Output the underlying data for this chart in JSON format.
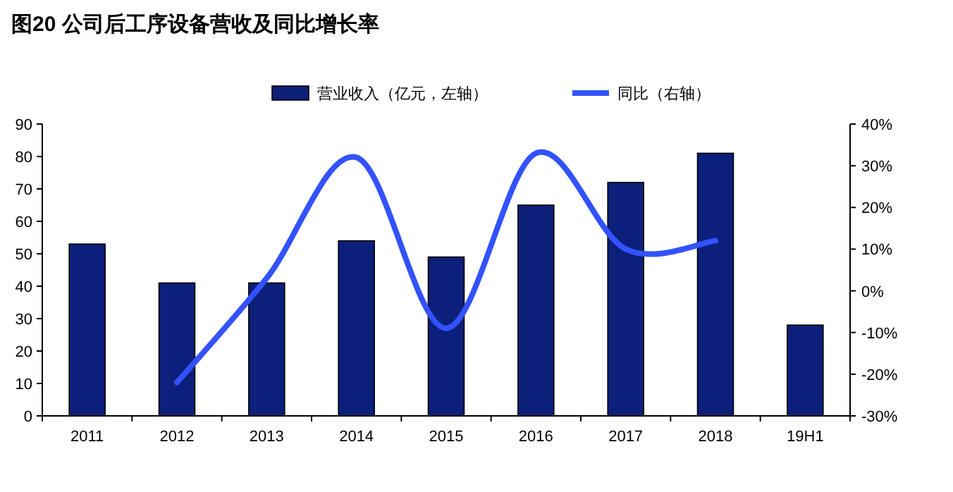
{
  "chart_data": {
    "type": "bar",
    "title": "图20  公司后工序设备营收及同比增长率",
    "categories": [
      "2011",
      "2012",
      "2013",
      "2014",
      "2015",
      "2016",
      "2017",
      "2018",
      "19H1"
    ],
    "series": [
      {
        "name": "营业收入（亿元，左轴）",
        "color": "#0c1f7a",
        "values": [
          53,
          41,
          41,
          54,
          49,
          65,
          72,
          81,
          28
        ]
      },
      {
        "name": "同比（右轴）",
        "color": "#3352ff",
        "type": "line",
        "axis": "y2",
        "values": [
          null,
          -22,
          3,
          32,
          -9,
          33,
          10,
          12,
          null
        ]
      }
    ],
    "ylim": [
      0,
      90
    ],
    "yticks": [
      0,
      10,
      20,
      30,
      40,
      50,
      60,
      70,
      80,
      90
    ],
    "y2lim": [
      -30,
      40
    ],
    "y2ticks": [
      {
        "value": -30,
        "label": "-30%"
      },
      {
        "value": -20,
        "label": "-20%"
      },
      {
        "value": -10,
        "label": "-10%"
      },
      {
        "value": 0,
        "label": "0%"
      },
      {
        "value": 10,
        "label": "10%"
      },
      {
        "value": 20,
        "label": "20%"
      },
      {
        "value": 30,
        "label": "30%"
      },
      {
        "value": 40,
        "label": "40%"
      }
    ],
    "legend": "top",
    "grid": false
  }
}
